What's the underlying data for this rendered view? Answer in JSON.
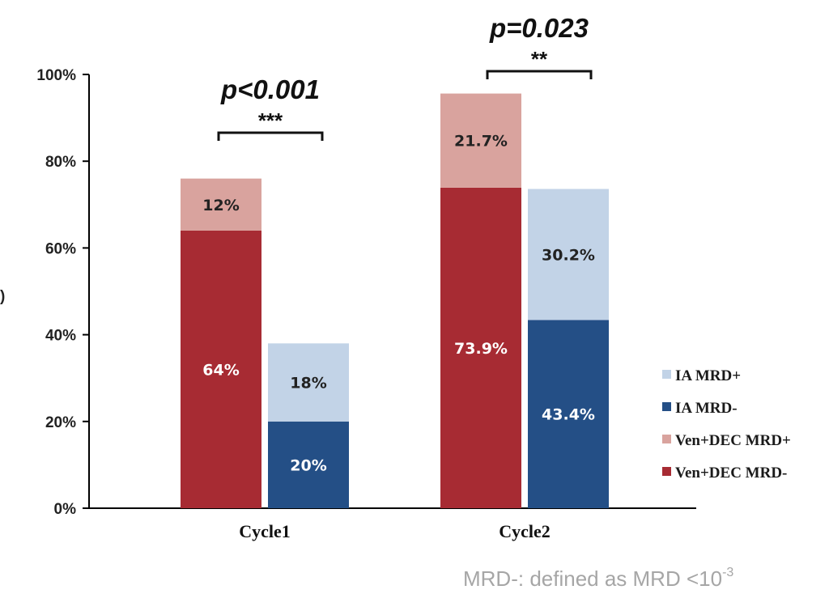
{
  "chart_data": {
    "type": "bar",
    "stacked": true,
    "ylim": [
      0,
      100
    ],
    "yticks": [
      "0%",
      "20%",
      "40%",
      "60%",
      "80%",
      "100%"
    ],
    "categories": [
      "Cycle1",
      "Cycle2"
    ],
    "groups": [
      {
        "category": "Cycle1",
        "bars": [
          {
            "stack": "Ven+DEC",
            "segments": [
              {
                "series": "Ven+DEC MRD-",
                "value": 64,
                "label": "64%"
              },
              {
                "series": "Ven+DEC MRD+",
                "value": 12,
                "label": "12%"
              }
            ]
          },
          {
            "stack": "IA",
            "segments": [
              {
                "series": "IA MRD-",
                "value": 20,
                "label": "20%"
              },
              {
                "series": "IA MRD+",
                "value": 18,
                "label": "18%"
              }
            ]
          }
        ],
        "significance": {
          "p": "p<0.001",
          "stars": "***"
        }
      },
      {
        "category": "Cycle2",
        "bars": [
          {
            "stack": "Ven+DEC",
            "segments": [
              {
                "series": "Ven+DEC MRD-",
                "value": 73.9,
                "label": "73.9%"
              },
              {
                "series": "Ven+DEC MRD+",
                "value": 21.7,
                "label": "21.7%"
              }
            ]
          },
          {
            "stack": "IA",
            "segments": [
              {
                "series": "IA MRD-",
                "value": 43.4,
                "label": "43.4%"
              },
              {
                "series": "IA MRD+",
                "value": 30.2,
                "label": "30.2%"
              }
            ]
          }
        ],
        "significance": {
          "p": "p=0.023",
          "stars": "**"
        }
      }
    ],
    "legend": {
      "placement": "right",
      "items": [
        {
          "name": "IA MRD+",
          "color": "#c2d3e7"
        },
        {
          "name": "IA MRD-",
          "color": "#244f86"
        },
        {
          "name": "Ven+DEC MRD+",
          "color": "#d9a39e"
        },
        {
          "name": "Ven+DEC MRD-",
          "color": "#a72b33"
        }
      ]
    },
    "ylabel_fragment": ")",
    "grid": false
  },
  "footnote": {
    "text": "MRD-: defined as MRD <10",
    "superscript": "-3"
  }
}
